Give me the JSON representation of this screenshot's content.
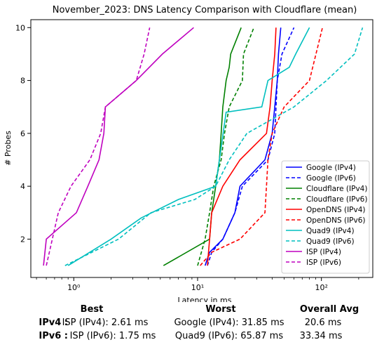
{
  "chart_data": {
    "type": "line",
    "title": "November_2023: DNS Latency Comparison with Cloudflare (mean)",
    "xlabel": "Latency in ms",
    "ylabel": "# Probes",
    "xscale": "log",
    "xlim": [
      0.45,
      260
    ],
    "ylim": [
      0.55,
      10.3
    ],
    "xticks": [
      {
        "value": 1,
        "label": "10⁰"
      },
      {
        "value": 10,
        "label": "10¹"
      },
      {
        "value": 100,
        "label": "10²"
      }
    ],
    "yticks": [
      2,
      4,
      6,
      8,
      10
    ],
    "grid": false,
    "legend_position": "lower-right",
    "series": [
      {
        "name": "Google (IPv4)",
        "color": "#0000ff",
        "dash": "solid",
        "x": [
          11.5,
          12.5,
          16,
          20,
          22,
          35,
          40,
          42,
          44,
          45,
          47
        ],
        "y": [
          1,
          1.5,
          2,
          3,
          4,
          5,
          6,
          7,
          8,
          9,
          10
        ]
      },
      {
        "name": "Google (IPv6)",
        "color": "#0000ff",
        "dash": "dashed",
        "x": [
          12,
          13,
          16,
          20,
          23,
          37,
          42,
          43,
          44,
          48,
          60
        ],
        "y": [
          1,
          1.5,
          2,
          3,
          4,
          5,
          6,
          7,
          8,
          9,
          10
        ]
      },
      {
        "name": "Cloudflare (IPv4)",
        "color": "#008000",
        "dash": "solid",
        "x": [
          5.3,
          12.5,
          13,
          14,
          15,
          15.5,
          16,
          17,
          18,
          18.5,
          22.5
        ],
        "y": [
          1,
          2,
          3,
          4,
          5,
          6,
          7,
          8,
          8.5,
          9,
          10
        ]
      },
      {
        "name": "Cloudflare (IPv6)",
        "color": "#008000",
        "dash": "dashed",
        "x": [
          10,
          11.5,
          12.5,
          13.5,
          15.5,
          16.5,
          18,
          23,
          23.5,
          28.5
        ],
        "y": [
          1,
          2,
          3,
          4,
          5,
          6,
          7,
          8,
          9,
          10
        ]
      },
      {
        "name": "OpenDNS (IPv4)",
        "color": "#ff0000",
        "dash": "solid",
        "x": [
          12,
          12.5,
          13,
          16,
          22,
          36,
          38.5,
          40,
          42,
          43
        ],
        "y": [
          1,
          2,
          3,
          4,
          5,
          6,
          7,
          8,
          9,
          10
        ]
      },
      {
        "name": "OpenDNS (IPv6)",
        "color": "#ff0000",
        "dash": "dashed",
        "x": [
          10.5,
          13,
          22,
          35,
          36,
          37,
          40,
          50,
          80,
          102
        ],
        "y": [
          1,
          1.5,
          2,
          3,
          4,
          5,
          6,
          7,
          8,
          10
        ]
      },
      {
        "name": "Quad9 (IPv4)",
        "color": "#00bfbf",
        "dash": "solid",
        "x": [
          0.9,
          2,
          3.5,
          7,
          14,
          17,
          33,
          37,
          55,
          62,
          80
        ],
        "y": [
          1,
          2,
          2.8,
          3.5,
          4,
          6.8,
          7,
          8,
          8.5,
          9,
          10
        ]
      },
      {
        "name": "Quad9 (IPv6)",
        "color": "#00bfbf",
        "dash": "dashed",
        "x": [
          0.85,
          2.3,
          4.2,
          9.5,
          14,
          18,
          25,
          60,
          110,
          185,
          215
        ],
        "y": [
          1,
          2,
          3,
          3.5,
          4,
          5,
          6,
          7,
          8,
          9,
          10
        ]
      },
      {
        "name": "ISP (IPv4)",
        "color": "#bf00bf",
        "dash": "solid",
        "x": [
          0.57,
          0.6,
          1.05,
          1.3,
          1.6,
          1.75,
          1.8,
          3.2,
          5.2,
          9.3
        ],
        "y": [
          1,
          2,
          3,
          4,
          5,
          6,
          7,
          8,
          9,
          10
        ]
      },
      {
        "name": "ISP (IPv6)",
        "color": "#bf00bf",
        "dash": "dashed",
        "x": [
          0.6,
          0.75,
          0.95,
          1.35,
          1.65,
          1.8,
          3.2,
          3.7,
          4.1
        ],
        "y": [
          1,
          3,
          4,
          5,
          6,
          7,
          8,
          9,
          10
        ]
      }
    ]
  },
  "stats": {
    "headers": {
      "best": "Best",
      "worst": "Worst",
      "avg": "Overall Avg"
    },
    "rows": [
      {
        "label": "IPv4 :",
        "best": "ISP (IPv4): 2.61 ms",
        "worst": "Google (IPv4): 31.85 ms",
        "avg": "20.6 ms"
      },
      {
        "label": "IPv6 :",
        "best": "ISP (IPv6): 1.75 ms",
        "worst": "Quad9 (IPv6): 65.87 ms",
        "avg": "33.34 ms"
      }
    ]
  }
}
